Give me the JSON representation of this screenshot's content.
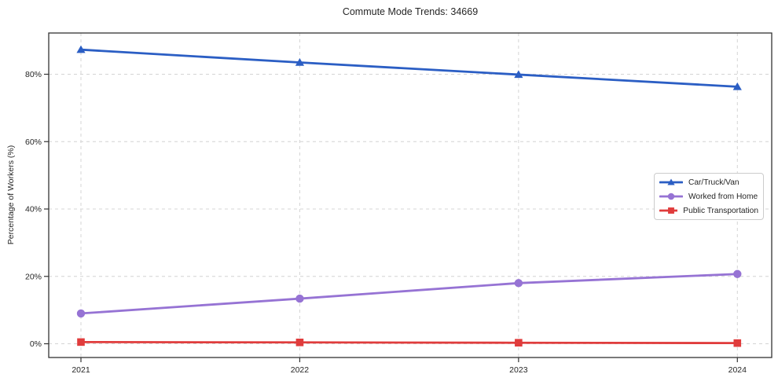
{
  "title": "Commute Mode Trends: 34669",
  "chart_data": {
    "type": "line",
    "title": "Commute Mode Trends: 34669",
    "xlabel": "",
    "ylabel": "Percentage of Workers (%)",
    "x": [
      2021,
      2022,
      2023,
      2024
    ],
    "x_tick_labels": [
      "2021",
      "2022",
      "2023",
      "2024"
    ],
    "y_ticks": [
      0,
      20,
      40,
      60,
      80
    ],
    "y_tick_labels": [
      "0%",
      "20%",
      "40%",
      "60%",
      "80%"
    ],
    "ylim": [
      -3.5,
      92
    ],
    "grid": "dashed, both horizontal and vertical",
    "legend_position": "center-right",
    "series": [
      {
        "name": "Car/Truck/Van",
        "color": "#2b5ec4",
        "marker": "triangle",
        "values": [
          87.3,
          83.5,
          79.9,
          76.3
        ]
      },
      {
        "name": "Worked from Home",
        "color": "#9673d4",
        "marker": "circle",
        "values": [
          9.0,
          13.4,
          18.0,
          20.7
        ]
      },
      {
        "name": "Public Transportation",
        "color": "#e03c3c",
        "marker": "square",
        "values": [
          0.5,
          0.4,
          0.3,
          0.2
        ]
      }
    ]
  },
  "colors": {
    "grid": "#d4d4d4",
    "spine": "#333333",
    "tick_text": "#262626",
    "title_text": "#262626"
  }
}
